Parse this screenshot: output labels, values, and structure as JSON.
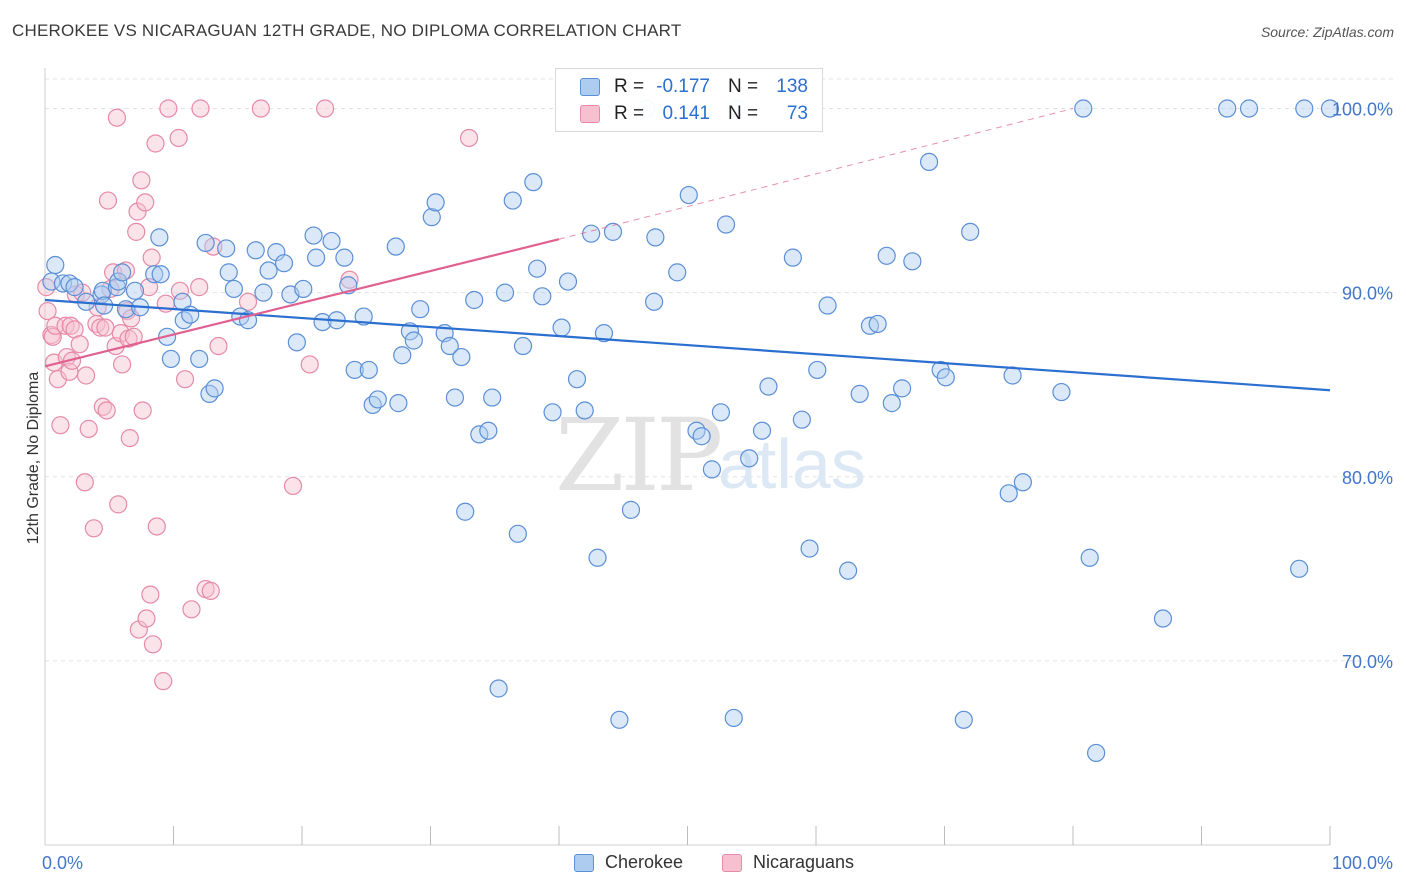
{
  "header": {
    "title": "CHEROKEE VS NICARAGUAN 12TH GRADE, NO DIPLOMA CORRELATION CHART",
    "source": "Source: ZipAtlas.com"
  },
  "legend_top": {
    "rows": [
      {
        "r_label": "R =",
        "r_value": "-0.177",
        "n_label": "N =",
        "n_value": "138"
      },
      {
        "r_label": "R =",
        "r_value": "0.141",
        "n_label": "N =",
        "n_value": "73"
      }
    ]
  },
  "legend_bottom": {
    "items": [
      {
        "label": "Cherokee"
      },
      {
        "label": "Nicaraguans"
      }
    ]
  },
  "watermark": {
    "zip": "ZIP",
    "atlas": "atlas"
  },
  "colors": {
    "blue_fill": "#aecbf0",
    "blue_stroke": "#5b8fd6",
    "blue_line": "#2b6fd0",
    "pink_fill": "#f7c0d0",
    "pink_stroke": "#e68aa8",
    "pink_line": "#e0608f",
    "axis_label": "#4477cc",
    "grid": "#e2e2e2"
  },
  "chart_data": {
    "type": "scatter",
    "title": "CHEROKEE VS NICARAGUAN 12TH GRADE, NO DIPLOMA CORRELATION CHART",
    "xlabel": "",
    "ylabel": "12th Grade, No Diploma",
    "xlim": [
      0,
      100
    ],
    "ylim": [
      60.0,
      102.2
    ],
    "x_tick_labels": [
      "0.0%",
      "100.0%"
    ],
    "y_ticks": [
      70,
      80,
      90,
      100
    ],
    "y_tick_labels": [
      "70.0%",
      "80.0%",
      "90.0%",
      "100.0%"
    ],
    "grid": true,
    "series": [
      {
        "name": "Cherokee",
        "stats": {
          "R": -0.177,
          "N": 138
        },
        "trend": {
          "x": [
            0,
            100
          ],
          "y": [
            89.6,
            84.7
          ],
          "dashed_extension": false
        },
        "points": [
          [
            0.5,
            90.6
          ],
          [
            0.8,
            91.5
          ],
          [
            1.4,
            90.5
          ],
          [
            1.9,
            90.5
          ],
          [
            2.3,
            90.3
          ],
          [
            3.2,
            89.5
          ],
          [
            4.4,
            89.9
          ],
          [
            4.5,
            90.1
          ],
          [
            4.6,
            89.3
          ],
          [
            5.6,
            90.3
          ],
          [
            5.7,
            90.6
          ],
          [
            6.0,
            91.1
          ],
          [
            6.3,
            89.1
          ],
          [
            7.0,
            90.1
          ],
          [
            7.4,
            89.2
          ],
          [
            8.5,
            91.0
          ],
          [
            9.0,
            91.0
          ],
          [
            8.9,
            93.0
          ],
          [
            9.5,
            87.6
          ],
          [
            9.8,
            86.4
          ],
          [
            10.7,
            89.5
          ],
          [
            10.8,
            88.5
          ],
          [
            11.3,
            88.8
          ],
          [
            12.0,
            86.4
          ],
          [
            12.5,
            92.7
          ],
          [
            12.8,
            84.5
          ],
          [
            13.2,
            84.8
          ],
          [
            14.1,
            92.4
          ],
          [
            14.3,
            91.1
          ],
          [
            14.7,
            90.2
          ],
          [
            15.2,
            88.7
          ],
          [
            15.8,
            88.5
          ],
          [
            16.4,
            92.3
          ],
          [
            17.0,
            90.0
          ],
          [
            17.4,
            91.2
          ],
          [
            18.0,
            92.2
          ],
          [
            18.6,
            91.6
          ],
          [
            19.1,
            89.9
          ],
          [
            19.6,
            87.3
          ],
          [
            20.1,
            90.2
          ],
          [
            20.9,
            93.1
          ],
          [
            21.1,
            91.9
          ],
          [
            21.6,
            88.4
          ],
          [
            22.3,
            92.8
          ],
          [
            22.7,
            88.5
          ],
          [
            23.3,
            91.9
          ],
          [
            23.6,
            90.4
          ],
          [
            24.1,
            85.8
          ],
          [
            24.8,
            88.7
          ],
          [
            25.2,
            85.8
          ],
          [
            25.5,
            83.9
          ],
          [
            25.9,
            84.2
          ],
          [
            27.3,
            92.5
          ],
          [
            27.5,
            84.0
          ],
          [
            27.8,
            86.6
          ],
          [
            28.4,
            87.9
          ],
          [
            28.7,
            87.4
          ],
          [
            29.2,
            89.1
          ],
          [
            30.1,
            94.1
          ],
          [
            30.4,
            94.9
          ],
          [
            31.1,
            87.8
          ],
          [
            31.5,
            87.1
          ],
          [
            31.9,
            84.3
          ],
          [
            32.4,
            86.5
          ],
          [
            32.7,
            78.1
          ],
          [
            33.4,
            89.6
          ],
          [
            33.8,
            82.3
          ],
          [
            34.5,
            82.5
          ],
          [
            34.8,
            84.3
          ],
          [
            35.3,
            68.5
          ],
          [
            35.8,
            90.0
          ],
          [
            36.4,
            95.0
          ],
          [
            36.8,
            76.9
          ],
          [
            37.2,
            87.1
          ],
          [
            38.0,
            96.0
          ],
          [
            38.3,
            91.3
          ],
          [
            38.7,
            89.8
          ],
          [
            39.5,
            83.5
          ],
          [
            40.2,
            88.1
          ],
          [
            40.7,
            90.6
          ],
          [
            41.4,
            85.3
          ],
          [
            42.0,
            83.6
          ],
          [
            42.5,
            93.2
          ],
          [
            43.0,
            75.6
          ],
          [
            43.5,
            87.8
          ],
          [
            44.2,
            93.3
          ],
          [
            44.7,
            66.8
          ],
          [
            45.6,
            78.2
          ],
          [
            46.8,
            100.0
          ],
          [
            47.4,
            89.5
          ],
          [
            47.5,
            93.0
          ],
          [
            49.2,
            91.1
          ],
          [
            50.1,
            95.3
          ],
          [
            50.7,
            82.5
          ],
          [
            51.1,
            82.2
          ],
          [
            51.9,
            80.4
          ],
          [
            52.6,
            83.5
          ],
          [
            53.0,
            93.7
          ],
          [
            53.6,
            66.9
          ],
          [
            53.8,
            100.0
          ],
          [
            54.8,
            81.0
          ],
          [
            55.8,
            82.5
          ],
          [
            56.3,
            84.9
          ],
          [
            58.2,
            91.9
          ],
          [
            58.9,
            83.1
          ],
          [
            59.5,
            76.1
          ],
          [
            60.1,
            85.8
          ],
          [
            60.9,
            89.3
          ],
          [
            62.5,
            74.9
          ],
          [
            63.4,
            84.5
          ],
          [
            64.2,
            88.2
          ],
          [
            64.8,
            88.3
          ],
          [
            65.5,
            92.0
          ],
          [
            65.9,
            84.0
          ],
          [
            66.7,
            84.8
          ],
          [
            67.5,
            91.7
          ],
          [
            68.8,
            97.1
          ],
          [
            69.7,
            85.8
          ],
          [
            70.1,
            85.4
          ],
          [
            71.5,
            66.8
          ],
          [
            72.0,
            93.3
          ],
          [
            75.0,
            79.1
          ],
          [
            75.3,
            85.5
          ],
          [
            76.1,
            79.7
          ],
          [
            79.1,
            84.6
          ],
          [
            80.8,
            100.0
          ],
          [
            81.3,
            75.6
          ],
          [
            81.8,
            65.0
          ],
          [
            87.0,
            72.3
          ],
          [
            92.0,
            100.0
          ],
          [
            93.7,
            100.0
          ],
          [
            97.6,
            75.0
          ],
          [
            98.0,
            100.0
          ],
          [
            100.0,
            100.0
          ]
        ]
      },
      {
        "name": "Nicaraguans",
        "stats": {
          "R": 0.141,
          "N": 73
        },
        "trend": {
          "x": [
            0,
            40
          ],
          "y": [
            86.0,
            92.9
          ],
          "dashed_extension": {
            "x": [
              40,
              80
            ],
            "y": [
              92.9,
              100.0
            ]
          }
        },
        "points": [
          [
            0.1,
            90.3
          ],
          [
            0.2,
            89.0
          ],
          [
            0.5,
            87.7
          ],
          [
            0.6,
            87.6
          ],
          [
            0.7,
            86.2
          ],
          [
            0.8,
            88.2
          ],
          [
            1.0,
            85.3
          ],
          [
            1.2,
            82.8
          ],
          [
            1.6,
            88.2
          ],
          [
            1.7,
            86.5
          ],
          [
            1.9,
            85.7
          ],
          [
            2.0,
            88.2
          ],
          [
            2.1,
            86.3
          ],
          [
            2.3,
            88.0
          ],
          [
            2.4,
            89.9
          ],
          [
            2.7,
            87.2
          ],
          [
            2.9,
            90.0
          ],
          [
            3.1,
            79.7
          ],
          [
            3.2,
            85.5
          ],
          [
            3.4,
            82.6
          ],
          [
            3.8,
            77.2
          ],
          [
            4.0,
            88.3
          ],
          [
            4.1,
            89.2
          ],
          [
            4.3,
            88.1
          ],
          [
            4.5,
            83.8
          ],
          [
            4.7,
            88.1
          ],
          [
            4.8,
            83.6
          ],
          [
            4.9,
            95.0
          ],
          [
            5.1,
            90.2
          ],
          [
            5.3,
            91.1
          ],
          [
            5.5,
            87.1
          ],
          [
            5.7,
            78.5
          ],
          [
            5.6,
            99.5
          ],
          [
            5.9,
            87.8
          ],
          [
            6.0,
            86.1
          ],
          [
            6.3,
            91.2
          ],
          [
            6.4,
            89.0
          ],
          [
            6.5,
            87.5
          ],
          [
            6.6,
            82.1
          ],
          [
            6.7,
            88.6
          ],
          [
            6.9,
            87.6
          ],
          [
            7.1,
            93.3
          ],
          [
            7.2,
            94.4
          ],
          [
            7.3,
            71.7
          ],
          [
            7.5,
            96.1
          ],
          [
            7.6,
            83.6
          ],
          [
            7.8,
            94.9
          ],
          [
            7.9,
            72.3
          ],
          [
            8.1,
            90.3
          ],
          [
            8.2,
            73.6
          ],
          [
            8.3,
            91.9
          ],
          [
            8.4,
            70.9
          ],
          [
            8.6,
            98.1
          ],
          [
            8.7,
            77.3
          ],
          [
            9.2,
            68.9
          ],
          [
            9.4,
            89.4
          ],
          [
            9.6,
            100.0
          ],
          [
            10.4,
            98.4
          ],
          [
            10.5,
            90.1
          ],
          [
            10.9,
            85.3
          ],
          [
            11.4,
            72.8
          ],
          [
            12.0,
            90.3
          ],
          [
            12.1,
            100.0
          ],
          [
            12.5,
            73.9
          ],
          [
            12.9,
            73.8
          ],
          [
            13.1,
            92.5
          ],
          [
            13.5,
            87.1
          ],
          [
            15.8,
            89.5
          ],
          [
            16.8,
            100.0
          ],
          [
            19.3,
            79.5
          ],
          [
            20.6,
            86.1
          ],
          [
            21.8,
            100.0
          ],
          [
            23.7,
            90.7
          ],
          [
            33.0,
            98.4
          ]
        ]
      }
    ]
  }
}
